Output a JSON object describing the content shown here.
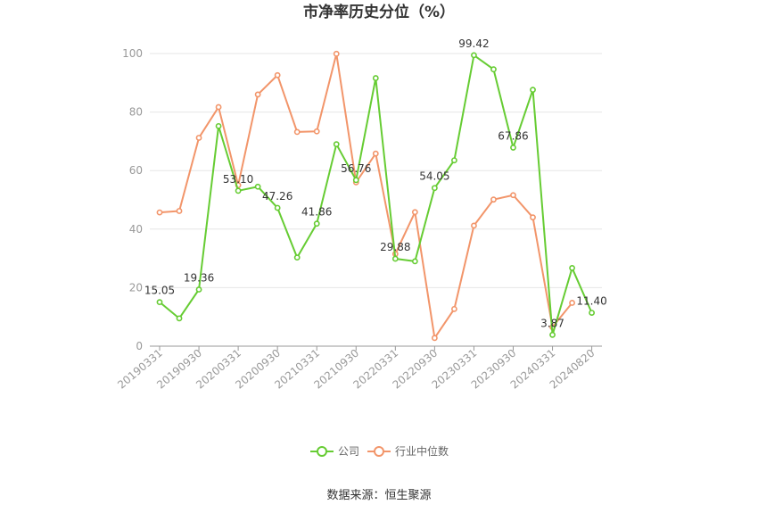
{
  "chart_data": {
    "type": "line",
    "title": "市净率历史分位（%）",
    "xlabel": "",
    "ylabel": "",
    "ylim": [
      0,
      100
    ],
    "yticks": [
      0,
      20,
      40,
      60,
      80,
      100
    ],
    "grid": true,
    "legend_position": "bottom",
    "tick_labels": [
      "20190331",
      "20190930",
      "20200331",
      "20200930",
      "20210331",
      "20210930",
      "20220331",
      "20220930",
      "20230331",
      "20230930",
      "20240331",
      "20240820"
    ],
    "series": [
      {
        "name": "公司",
        "color": "#66cc33",
        "values": [
          15.05,
          9.5,
          19.36,
          75.2,
          53.1,
          54.5,
          47.26,
          30.3,
          41.86,
          69.0,
          56.76,
          91.6,
          29.88,
          29.0,
          54.05,
          63.5,
          99.42,
          94.6,
          67.86,
          87.6,
          3.87,
          26.7,
          11.4
        ],
        "labels": [
          "15.05",
          "",
          "19.36",
          "",
          "53.10",
          "",
          "47.26",
          "",
          "41.86",
          "",
          "56.76",
          "",
          "29.88",
          "",
          "54.05",
          "",
          "99.42",
          "",
          "67.86",
          "",
          "3.87",
          "",
          "11.40"
        ]
      },
      {
        "name": "行业中位数",
        "color": "#f2956a",
        "values": [
          45.7,
          46.2,
          71.2,
          81.7,
          55.0,
          86.0,
          92.6,
          73.2,
          73.4,
          99.9,
          56.0,
          65.8,
          31.5,
          45.8,
          2.8,
          12.7,
          41.2,
          50.1,
          51.6,
          44.0,
          6.5,
          14.8,
          null
        ]
      }
    ]
  },
  "source_text": "数据来源：恒生聚源"
}
